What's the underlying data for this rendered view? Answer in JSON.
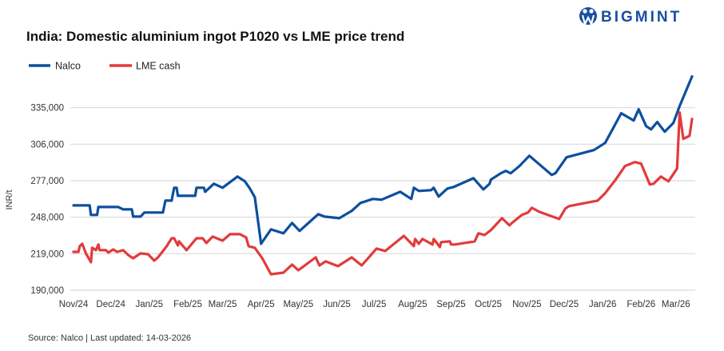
{
  "logo": {
    "text": "BIGMINT",
    "color": "#1a4fa0",
    "icon": "bigmint-logo-icon"
  },
  "source": "Source: Nalco | Last updated: 14-03-2026",
  "chart_data": {
    "type": "line",
    "title": "India: Domestic aluminium ingot P1020 vs LME price trend",
    "xlabel": "",
    "ylabel": "INR/t",
    "ylim": [
      190000,
      364000
    ],
    "yticks": [
      190000,
      219000,
      248000,
      277000,
      306000,
      335000
    ],
    "ytick_labels": [
      "190,000",
      "219,000",
      "248,000",
      "277,000",
      "306,000",
      "335,000"
    ],
    "xlim": [
      "2024-11-01",
      "2026-03-14"
    ],
    "xticks": [
      "2024-11-01",
      "2024-12-01",
      "2025-01-01",
      "2025-02-01",
      "2025-03-01",
      "2025-04-01",
      "2025-05-01",
      "2025-06-01",
      "2025-07-01",
      "2025-08-01",
      "2025-09-01",
      "2025-10-01",
      "2025-11-01",
      "2025-12-01",
      "2026-01-01",
      "2026-02-01",
      "2026-03-01"
    ],
    "xtick_labels": [
      "Nov/24",
      "Dec/24",
      "Jan/25",
      "Feb/25",
      "Mar/25",
      "Apr/25",
      "May/25",
      "Jun/25",
      "Jul/25",
      "Aug/25",
      "Sep/25",
      "Oct/25",
      "Nov/25",
      "Dec/25",
      "Jan/26",
      "Feb/26",
      "Mar/26"
    ],
    "grid": "horizontal",
    "legend_position": "top-left",
    "series": [
      {
        "name": "Nalco",
        "color": "#0d4f9e",
        "points": [
          [
            "2024-11-01",
            257400
          ],
          [
            "2024-11-14",
            257400
          ],
          [
            "2024-11-15",
            249800
          ],
          [
            "2024-11-20",
            249800
          ],
          [
            "2024-11-21",
            256100
          ],
          [
            "2024-12-07",
            256100
          ],
          [
            "2024-12-11",
            254200
          ],
          [
            "2024-12-18",
            254200
          ],
          [
            "2024-12-19",
            248500
          ],
          [
            "2024-12-25",
            248500
          ],
          [
            "2024-12-28",
            251700
          ],
          [
            "2025-01-12",
            251700
          ],
          [
            "2025-01-14",
            261200
          ],
          [
            "2025-01-19",
            261200
          ],
          [
            "2025-01-21",
            271400
          ],
          [
            "2025-01-23",
            271400
          ],
          [
            "2025-01-24",
            265000
          ],
          [
            "2025-02-07",
            265000
          ],
          [
            "2025-02-08",
            271400
          ],
          [
            "2025-02-14",
            271400
          ],
          [
            "2025-02-15",
            268200
          ],
          [
            "2025-02-22",
            274600
          ],
          [
            "2025-03-01",
            271400
          ],
          [
            "2025-03-13",
            280300
          ],
          [
            "2025-03-19",
            276500
          ],
          [
            "2025-03-23",
            270800
          ],
          [
            "2025-03-27",
            263800
          ],
          [
            "2025-04-01",
            226900
          ],
          [
            "2025-04-09",
            238300
          ],
          [
            "2025-04-19",
            235200
          ],
          [
            "2025-04-26",
            243400
          ],
          [
            "2025-05-02",
            237100
          ],
          [
            "2025-05-17",
            250400
          ],
          [
            "2025-05-22",
            248500
          ],
          [
            "2025-06-03",
            247200
          ],
          [
            "2025-06-13",
            253000
          ],
          [
            "2025-06-20",
            259300
          ],
          [
            "2025-06-30",
            262500
          ],
          [
            "2025-07-07",
            261900
          ],
          [
            "2025-07-22",
            268200
          ],
          [
            "2025-07-31",
            262500
          ],
          [
            "2025-08-02",
            271400
          ],
          [
            "2025-08-06",
            268900
          ],
          [
            "2025-08-16",
            269500
          ],
          [
            "2025-08-18",
            271400
          ],
          [
            "2025-08-22",
            264400
          ],
          [
            "2025-08-29",
            270800
          ],
          [
            "2025-09-03",
            272000
          ],
          [
            "2025-09-19",
            279000
          ],
          [
            "2025-09-27",
            270100
          ],
          [
            "2025-10-02",
            274600
          ],
          [
            "2025-10-03",
            277800
          ],
          [
            "2025-10-11",
            282900
          ],
          [
            "2025-10-15",
            284800
          ],
          [
            "2025-10-19",
            282900
          ],
          [
            "2025-10-26",
            288600
          ],
          [
            "2025-11-03",
            296800
          ],
          [
            "2025-11-21",
            281600
          ],
          [
            "2025-11-24",
            282900
          ],
          [
            "2025-12-03",
            295600
          ],
          [
            "2025-12-25",
            301300
          ],
          [
            "2026-01-03",
            307000
          ],
          [
            "2026-01-10",
            319700
          ],
          [
            "2026-01-16",
            330600
          ],
          [
            "2026-01-26",
            324800
          ],
          [
            "2026-01-30",
            333700
          ],
          [
            "2026-02-05",
            320400
          ],
          [
            "2026-02-09",
            317800
          ],
          [
            "2026-02-14",
            323600
          ],
          [
            "2026-02-20",
            315900
          ],
          [
            "2026-02-27",
            322900
          ],
          [
            "2026-03-04",
            336300
          ],
          [
            "2026-03-14",
            359800
          ]
        ]
      },
      {
        "name": "LME cash",
        "color": "#e23b3b",
        "points": [
          [
            "2024-11-01",
            220500
          ],
          [
            "2024-11-05",
            220500
          ],
          [
            "2024-11-06",
            225000
          ],
          [
            "2024-11-08",
            226900
          ],
          [
            "2024-11-11",
            219300
          ],
          [
            "2024-11-15",
            212300
          ],
          [
            "2024-11-16",
            223700
          ],
          [
            "2024-11-19",
            221800
          ],
          [
            "2024-11-21",
            226300
          ],
          [
            "2024-11-22",
            221800
          ],
          [
            "2024-11-27",
            221800
          ],
          [
            "2024-11-29",
            219900
          ],
          [
            "2024-12-03",
            222400
          ],
          [
            "2024-12-06",
            220500
          ],
          [
            "2024-12-11",
            221800
          ],
          [
            "2024-12-15",
            218000
          ],
          [
            "2024-12-19",
            215400
          ],
          [
            "2024-12-25",
            219300
          ],
          [
            "2024-12-31",
            218600
          ],
          [
            "2025-01-05",
            213500
          ],
          [
            "2025-01-08",
            216100
          ],
          [
            "2025-01-13",
            222400
          ],
          [
            "2025-01-15",
            225000
          ],
          [
            "2025-01-19",
            231300
          ],
          [
            "2025-01-21",
            231300
          ],
          [
            "2025-01-24",
            225600
          ],
          [
            "2025-01-25",
            228800
          ],
          [
            "2025-01-31",
            221800
          ],
          [
            "2025-02-08",
            231300
          ],
          [
            "2025-02-13",
            231300
          ],
          [
            "2025-02-16",
            227500
          ],
          [
            "2025-02-21",
            232600
          ],
          [
            "2025-03-01",
            229400
          ],
          [
            "2025-03-07",
            234500
          ],
          [
            "2025-03-15",
            234500
          ],
          [
            "2025-03-20",
            232000
          ],
          [
            "2025-03-22",
            225000
          ],
          [
            "2025-03-27",
            223700
          ],
          [
            "2025-04-02",
            215400
          ],
          [
            "2025-04-09",
            202700
          ],
          [
            "2025-04-19",
            204000
          ],
          [
            "2025-04-26",
            210400
          ],
          [
            "2025-05-01",
            205900
          ],
          [
            "2025-05-15",
            216100
          ],
          [
            "2025-05-18",
            209700
          ],
          [
            "2025-05-23",
            212900
          ],
          [
            "2025-06-02",
            209100
          ],
          [
            "2025-06-13",
            216100
          ],
          [
            "2025-06-21",
            209700
          ],
          [
            "2025-07-03",
            223100
          ],
          [
            "2025-07-10",
            221200
          ],
          [
            "2025-07-25",
            233200
          ],
          [
            "2025-08-02",
            225000
          ],
          [
            "2025-08-03",
            230700
          ],
          [
            "2025-08-06",
            226900
          ],
          [
            "2025-08-09",
            230700
          ],
          [
            "2025-08-17",
            226300
          ],
          [
            "2025-08-18",
            230700
          ],
          [
            "2025-08-23",
            224300
          ],
          [
            "2025-08-24",
            228200
          ],
          [
            "2025-08-31",
            228800
          ],
          [
            "2025-09-01",
            226300
          ],
          [
            "2025-09-04",
            226300
          ],
          [
            "2025-09-20",
            228800
          ],
          [
            "2025-09-23",
            235200
          ],
          [
            "2025-09-28",
            233900
          ],
          [
            "2025-10-03",
            237700
          ],
          [
            "2025-10-12",
            247200
          ],
          [
            "2025-10-18",
            241500
          ],
          [
            "2025-10-20",
            243400
          ],
          [
            "2025-10-28",
            249800
          ],
          [
            "2025-11-02",
            251700
          ],
          [
            "2025-11-05",
            255500
          ],
          [
            "2025-11-11",
            252300
          ],
          [
            "2025-11-27",
            246600
          ],
          [
            "2025-12-02",
            254900
          ],
          [
            "2025-12-05",
            256800
          ],
          [
            "2025-12-28",
            261200
          ],
          [
            "2026-01-03",
            267000
          ],
          [
            "2026-01-11",
            277100
          ],
          [
            "2026-01-19",
            288600
          ],
          [
            "2026-01-27",
            291800
          ],
          [
            "2026-02-01",
            290500
          ],
          [
            "2026-02-08",
            274000
          ],
          [
            "2026-02-11",
            274600
          ],
          [
            "2026-02-17",
            280300
          ],
          [
            "2026-02-23",
            276500
          ],
          [
            "2026-03-02",
            286700
          ],
          [
            "2026-03-04",
            331200
          ],
          [
            "2026-03-07",
            310200
          ],
          [
            "2026-03-12",
            312700
          ],
          [
            "2026-03-14",
            326100
          ]
        ]
      }
    ]
  }
}
